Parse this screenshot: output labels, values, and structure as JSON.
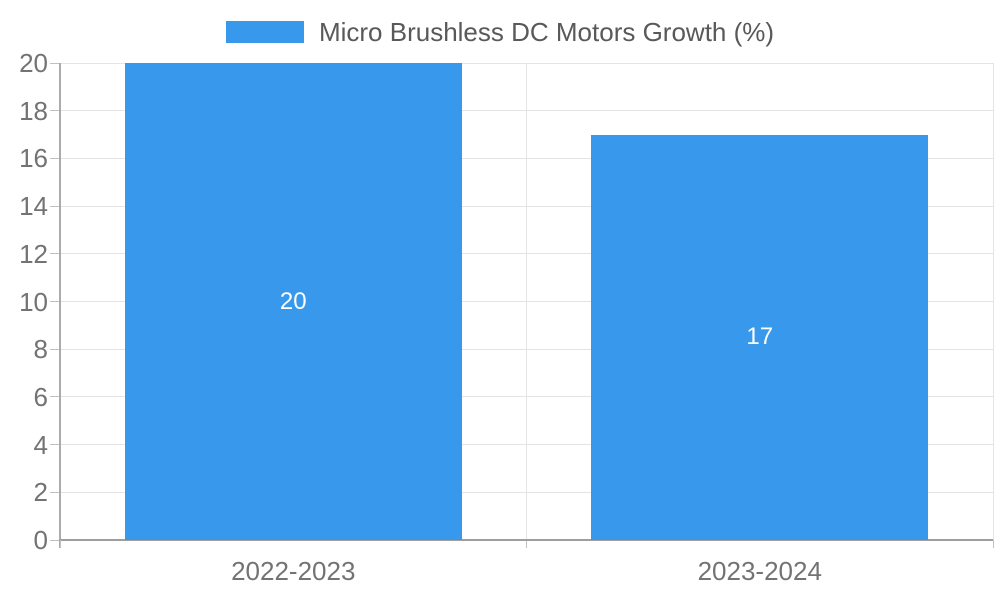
{
  "legend": {
    "label": "Micro Brushless DC Motors Growth (%)"
  },
  "chart_data": {
    "type": "bar",
    "categories": [
      "2022-2023",
      "2023-2024"
    ],
    "values": [
      20,
      17
    ],
    "series_name": "Micro Brushless DC Motors Growth (%)",
    "title": "",
    "xlabel": "",
    "ylabel": "",
    "ylim": [
      0,
      20
    ],
    "ytick_step": 2,
    "ytick_labels": [
      "0",
      "2",
      "4",
      "6",
      "8",
      "10",
      "12",
      "14",
      "16",
      "18",
      "20"
    ],
    "data_labels": [
      "20",
      "17"
    ],
    "grid": true,
    "legend_position": "top-center",
    "colors": {
      "bar": "#3898EC",
      "data_label": "#FFFFFF",
      "gridline": "#E4E4E4",
      "y_axis": "#ABABAB",
      "x_axis": "#9E9E9E",
      "tick": "#C0C0C0",
      "axis_text": "#737373",
      "legend_text": "#595959",
      "background": "#FFFFFF"
    }
  }
}
